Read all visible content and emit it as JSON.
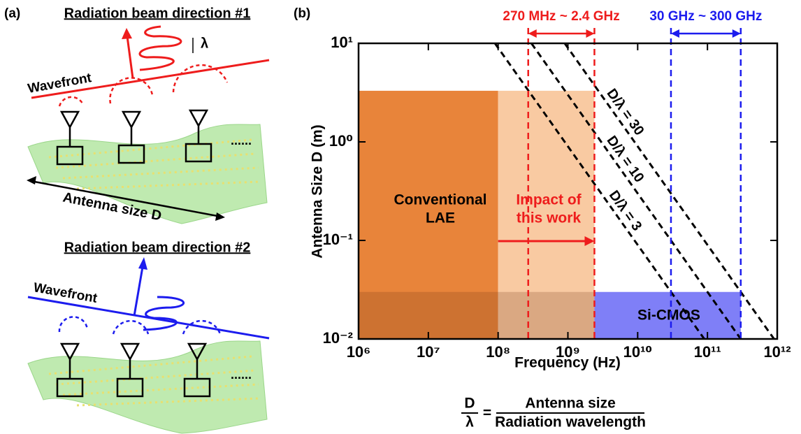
{
  "panel_a": {
    "label": "(a)",
    "heading1": "Radiation beam direction #1",
    "lambda": "λ",
    "wavefront1": "Wavefront",
    "ellipsis1": "......",
    "antenna_size": "Antenna size D",
    "heading2": "Radiation beam direction #2",
    "wavefront2": "Wavefront",
    "ellipsis2": "......"
  },
  "chart_data": {
    "type": "line",
    "panel_label": "(b)",
    "xlabel": "Frequency (Hz)",
    "ylabel": "Antenna Size D (m)",
    "xlog": true,
    "ylog": true,
    "xlim": [
      1000000,
      1000000000000
    ],
    "ylim": [
      0.01,
      10
    ],
    "xticks": [
      {
        "value": 1000000,
        "label": "10⁶"
      },
      {
        "value": 10000000,
        "label": "10⁷"
      },
      {
        "value": 100000000,
        "label": "10⁸"
      },
      {
        "value": 1000000000,
        "label": "10⁹"
      },
      {
        "value": 10000000000,
        "label": "10¹⁰"
      },
      {
        "value": 100000000000,
        "label": "10¹¹"
      },
      {
        "value": 1000000000000,
        "label": "10¹²"
      }
    ],
    "yticks": [
      {
        "value": 0.01,
        "label": "10⁻²"
      },
      {
        "value": 0.1,
        "label": "10⁻¹"
      },
      {
        "value": 1,
        "label": "10⁰"
      },
      {
        "value": 10,
        "label": "10¹"
      }
    ],
    "series": [
      {
        "name": "D/λ = 3",
        "color": "#000000",
        "x": [
          90000000,
          90000000000
        ],
        "values": [
          10,
          0.01
        ]
      },
      {
        "name": "D/λ = 10",
        "color": "#000000",
        "x": [
          300000000,
          300000000000
        ],
        "values": [
          10,
          0.01
        ]
      },
      {
        "name": "D/λ = 30",
        "color": "#000000",
        "x": [
          900000000,
          900000000000
        ],
        "values": [
          10,
          0.01
        ]
      }
    ],
    "regions": [
      {
        "lines": [
          "Conventional",
          "LAE"
        ],
        "x": [
          1000000,
          100000000
        ],
        "y": [
          0.01,
          3.3
        ],
        "color": "#e8843a",
        "text_color": "#000000"
      },
      {
        "lines": [
          "Impact of",
          "this work"
        ],
        "x": [
          100000000,
          2400000000
        ],
        "y": [
          0.01,
          3.3
        ],
        "color": "#f9caa2",
        "text_color": "#ee1c1c"
      },
      {
        "lines": [
          "Si-CMOS"
        ],
        "x": [
          2400000000,
          300000000000
        ],
        "y": [
          0.01,
          0.03
        ],
        "color": "#7f7ff7",
        "text_color": "#000000"
      }
    ],
    "bands": [
      {
        "label": "270 MHz ~ 2.4 GHz",
        "range": [
          270000000,
          2400000000
        ],
        "color": "#ee1c1c"
      },
      {
        "label": "30 GHz ~ 300 GHz",
        "range": [
          30000000000,
          300000000000
        ],
        "color": "#1c1cee"
      }
    ],
    "formula": {
      "num": "D",
      "den": "λ",
      "eq": "=",
      "rhs_num": "Antenna size",
      "rhs_den": "Radiation wavelength"
    }
  }
}
